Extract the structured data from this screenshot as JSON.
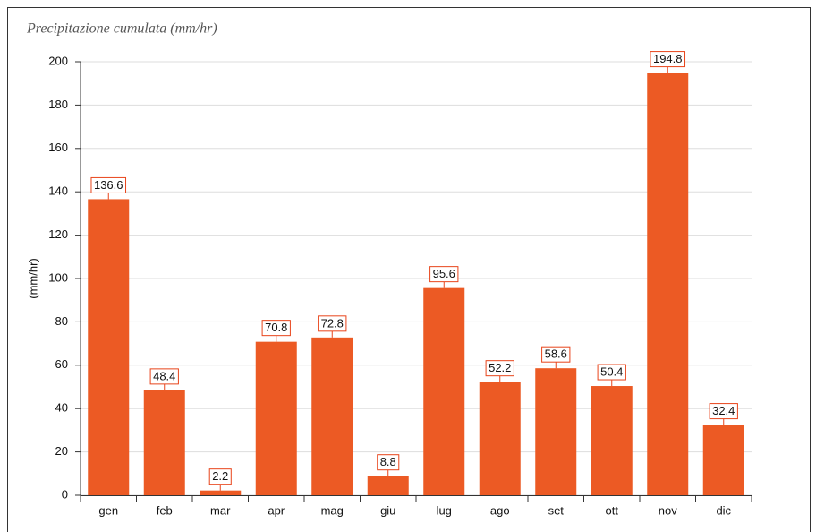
{
  "chart_data": {
    "type": "bar",
    "title": "Precipitazione cumulata (mm/hr)",
    "y_label": "(mm/hr)",
    "categories": [
      "gen",
      "feb",
      "mar",
      "apr",
      "mag",
      "giu",
      "lug",
      "ago",
      "set",
      "ott",
      "nov",
      "dic"
    ],
    "values": [
      136.6,
      48.4,
      2.2,
      70.8,
      72.8,
      8.8,
      95.6,
      52.2,
      58.6,
      50.4,
      194.8,
      32.4
    ],
    "color": "#ec5a24",
    "label_border": "#e8441a",
    "ylim": [
      0,
      200
    ],
    "yticks": [
      0,
      20,
      40,
      60,
      80,
      100,
      120,
      140,
      160,
      180,
      200
    ],
    "grid": true
  }
}
